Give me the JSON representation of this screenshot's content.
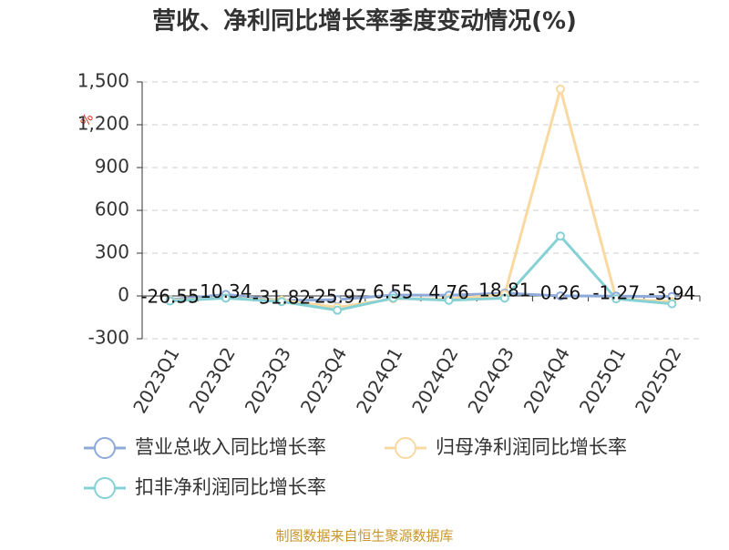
{
  "chart_data": {
    "type": "line",
    "title": "营收、净利同比增长率季度变动情况(%)",
    "y_label": "%",
    "categories": [
      "2023Q1",
      "2023Q2",
      "2023Q3",
      "2023Q4",
      "2024Q1",
      "2024Q2",
      "2024Q3",
      "2024Q4",
      "2025Q1",
      "2025Q2"
    ],
    "series": [
      {
        "name": "营业总收入同比增长率",
        "color": "#8eaad8",
        "values": [
          -26.55,
          10.34,
          -31.82,
          -25.97,
          6.55,
          4.76,
          18.81,
          0.26,
          -1.27,
          -3.94
        ]
      },
      {
        "name": "归母净利润同比增长率",
        "color": "#fad9a1",
        "values": [
          -30,
          -15,
          -30,
          -80,
          -20,
          -20,
          10,
          1450,
          -20,
          -40
        ]
      },
      {
        "name": "扣非净利润同比增长率",
        "color": "#86d1d5",
        "values": [
          -35,
          -15,
          -40,
          -100,
          -15,
          -30,
          -15,
          420,
          -20,
          -55
        ]
      }
    ],
    "ylim": [
      -300,
      1500
    ],
    "yticks": [
      -300,
      0,
      300,
      600,
      900,
      {
        "value": 1200,
        "label": "1,200"
      },
      {
        "value": 1500,
        "label": "1,500"
      }
    ],
    "grid": true,
    "source": "制图数据来自恒生聚源数据库"
  }
}
